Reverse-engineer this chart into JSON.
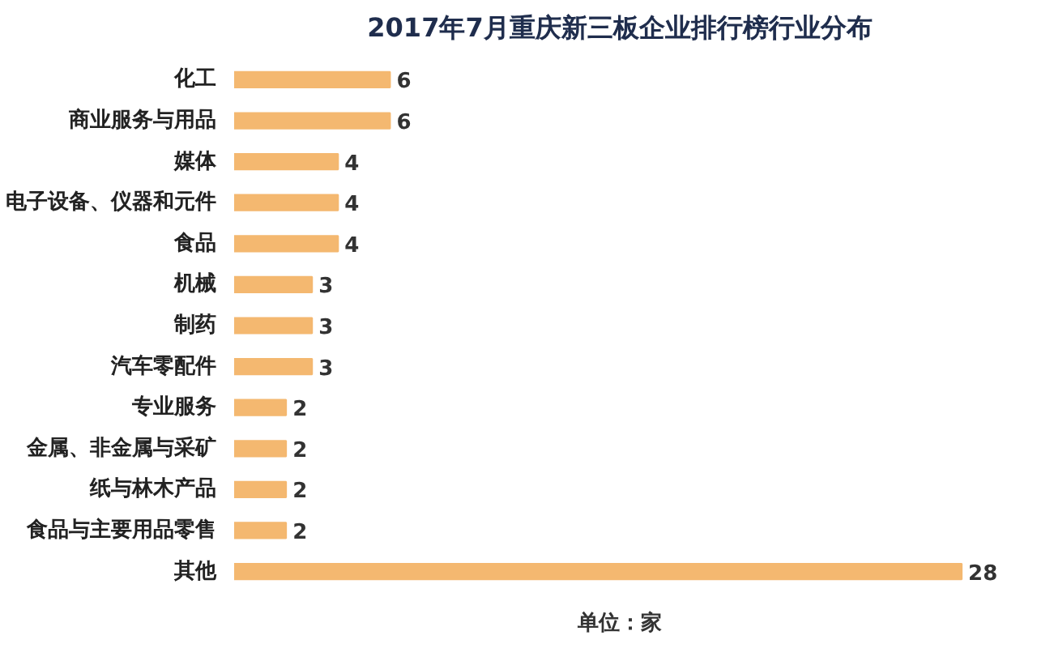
{
  "chart_data": {
    "type": "bar",
    "orientation": "horizontal",
    "title": "2017年7月重庆新三板企业排行榜行业分布",
    "categories": [
      "化工",
      "商业服务与用品",
      "媒体",
      "电子设备、仪器和元件",
      "食品",
      "机械",
      "制药",
      "汽车零配件",
      "专业服务",
      "金属、非金属与采矿",
      "纸与林木产品",
      "食品与主要用品零售",
      "其他"
    ],
    "values": [
      6,
      6,
      4,
      4,
      4,
      3,
      3,
      3,
      2,
      2,
      2,
      2,
      28
    ],
    "color": "#f4b870",
    "data_labels": true,
    "grid": false,
    "annotations": [
      "单位：家"
    ]
  }
}
